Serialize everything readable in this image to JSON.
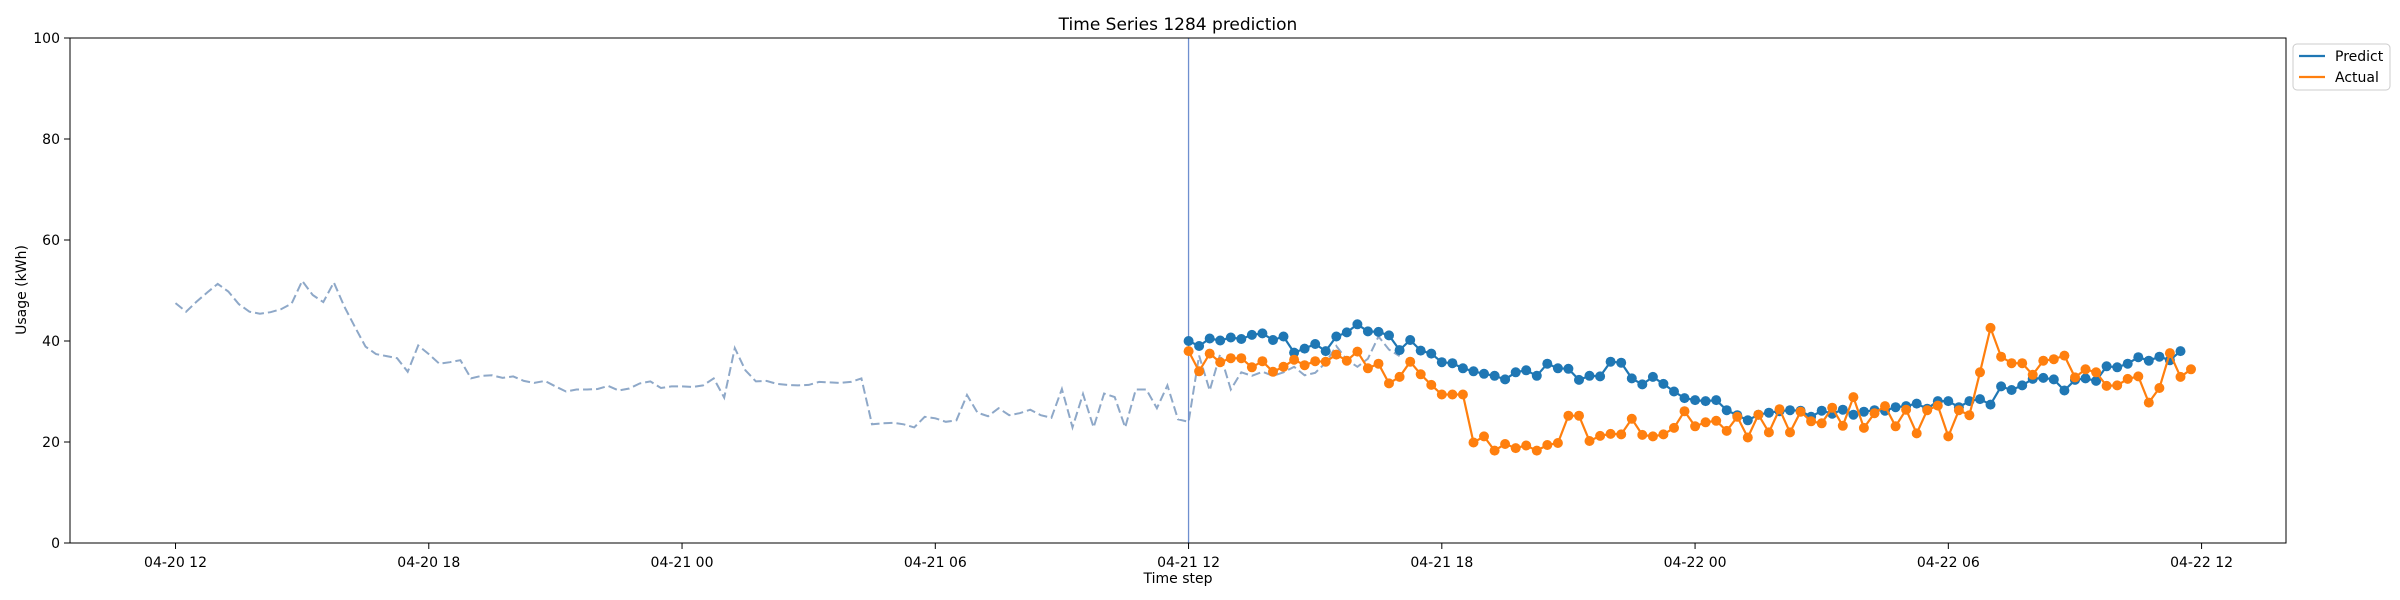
{
  "chart_data": {
    "type": "line",
    "title": "Time Series 1284 prediction",
    "xlabel": "Time step",
    "ylabel": "Usage (kWh)",
    "ylim": [
      0,
      100
    ],
    "yticks": [
      0,
      20,
      40,
      60,
      80,
      100
    ],
    "x_axis_unit": "hour",
    "xlim": [
      "04-20 09:30",
      "04-22 14:00"
    ],
    "xticks": [
      {
        "label": "04-20 12",
        "x": "04-20 12:00"
      },
      {
        "label": "04-20 18",
        "x": "04-20 18:00"
      },
      {
        "label": "04-21 00",
        "x": "04-21 00:00"
      },
      {
        "label": "04-21 06",
        "x": "04-21 06:00"
      },
      {
        "label": "04-21 12",
        "x": "04-21 12:00"
      },
      {
        "label": "04-21 18",
        "x": "04-21 18:00"
      },
      {
        "label": "04-22 00",
        "x": "04-22 00:00"
      },
      {
        "label": "04-22 06",
        "x": "04-22 06:00"
      },
      {
        "label": "04-22 12",
        "x": "04-22 12:00"
      }
    ],
    "forecast_start": "04-21 12:00",
    "grid": false,
    "legend_position": "top-right",
    "history": {
      "start": "04-20 12:00",
      "step_minutes": 15,
      "color": "#8ea8c8",
      "style": "dashed",
      "values": [
        47.5,
        45.8,
        47.8,
        49.6,
        51.3,
        49.8,
        47.3,
        45.8,
        45.4,
        45.7,
        46.3,
        47.4,
        51.9,
        49.1,
        47.7,
        51.6,
        46.8,
        42.8,
        38.9,
        37.4,
        37.0,
        36.6,
        33.9,
        39.1,
        37.4,
        35.5,
        35.8,
        36.2,
        32.6,
        33.1,
        33.2,
        32.7,
        33.0,
        32.1,
        31.7,
        32.1,
        31.0,
        30.0,
        30.4,
        30.4,
        30.5,
        31.1,
        30.2,
        30.6,
        31.6,
        32.0,
        30.7,
        31.0,
        31.0,
        30.9,
        31.2,
        32.6,
        28.8,
        38.6,
        34.2,
        32.0,
        32.1,
        31.5,
        31.3,
        31.2,
        31.3,
        31.9,
        31.8,
        31.7,
        31.9,
        32.6,
        23.5,
        23.7,
        23.8,
        23.5,
        22.9,
        25.0,
        24.7,
        24.0,
        24.3,
        29.3,
        25.8,
        25.1,
        26.7,
        25.3,
        25.7,
        26.4,
        25.3,
        24.8,
        30.5,
        22.9,
        29.5,
        22.9,
        29.6,
        28.9,
        22.9,
        30.4,
        30.4,
        26.7,
        31.2,
        24.5,
        24.0,
        37.1,
        30.2,
        37.4,
        30.4,
        33.8,
        33.1,
        33.9,
        33.1,
        33.8,
        34.9,
        33.2,
        33.7,
        35.7,
        39.0,
        36.3,
        34.9,
        36.5,
        40.9,
        38.3,
        37.0
      ]
    },
    "series": [
      {
        "name": "Predict",
        "color": "#1f77b4",
        "start": "04-21 12:00",
        "step_minutes": 15,
        "values": [
          40.0,
          39.0,
          40.5,
          40.1,
          40.7,
          40.4,
          41.2,
          41.5,
          40.2,
          40.9,
          37.7,
          38.5,
          39.4,
          38.0,
          40.9,
          41.7,
          43.3,
          41.9,
          41.8,
          41.1,
          38.2,
          40.2,
          38.1,
          37.5,
          35.8,
          35.6,
          34.6,
          34.0,
          33.5,
          33.1,
          32.4,
          33.8,
          34.2,
          33.1,
          35.5,
          34.6,
          34.5,
          32.3,
          33.1,
          33.0,
          35.9,
          35.7,
          32.6,
          31.4,
          32.9,
          31.5,
          30.0,
          28.7,
          28.3,
          28.1,
          28.3,
          26.3,
          25.3,
          24.3,
          25.4,
          25.8,
          26.1,
          26.3,
          26.2,
          25.0,
          26.2,
          25.6,
          26.4,
          25.4,
          26.0,
          26.3,
          26.2,
          26.9,
          27.1,
          27.6,
          26.6,
          28.1,
          28.1,
          26.9,
          28.1,
          28.5,
          27.4,
          31.0,
          30.3,
          31.2,
          32.5,
          32.7,
          32.4,
          30.2,
          32.3,
          32.6,
          32.1,
          35.0,
          34.8,
          35.5,
          36.8,
          36.1,
          36.9,
          36.2,
          38.0
        ]
      },
      {
        "name": "Actual",
        "color": "#ff7f0e",
        "start": "04-21 12:00",
        "step_minutes": 15,
        "values": [
          38.0,
          34.0,
          37.5,
          35.8,
          36.6,
          36.6,
          34.8,
          36.0,
          33.9,
          34.9,
          36.3,
          35.2,
          36.0,
          35.9,
          37.3,
          36.1,
          37.9,
          34.6,
          35.5,
          31.6,
          32.9,
          35.9,
          33.4,
          31.3,
          29.4,
          29.4,
          29.4,
          19.9,
          21.1,
          18.3,
          19.6,
          18.8,
          19.3,
          18.3,
          19.4,
          19.8,
          25.2,
          25.2,
          20.2,
          21.2,
          21.6,
          21.5,
          24.6,
          21.4,
          21.1,
          21.5,
          22.8,
          26.1,
          23.1,
          23.9,
          24.2,
          22.2,
          25.0,
          20.9,
          25.4,
          21.9,
          26.5,
          21.9,
          26.0,
          24.1,
          23.7,
          26.8,
          23.2,
          28.9,
          22.8,
          25.7,
          27.1,
          23.1,
          26.4,
          21.7,
          26.3,
          27.2,
          21.1,
          26.3,
          25.3,
          33.8,
          42.6,
          36.9,
          35.6,
          35.6,
          33.3,
          36.1,
          36.4,
          37.1,
          32.8,
          34.4,
          33.8,
          31.1,
          31.2,
          32.5,
          33.0,
          27.8,
          30.7,
          37.6,
          32.9,
          34.4
        ]
      }
    ]
  }
}
